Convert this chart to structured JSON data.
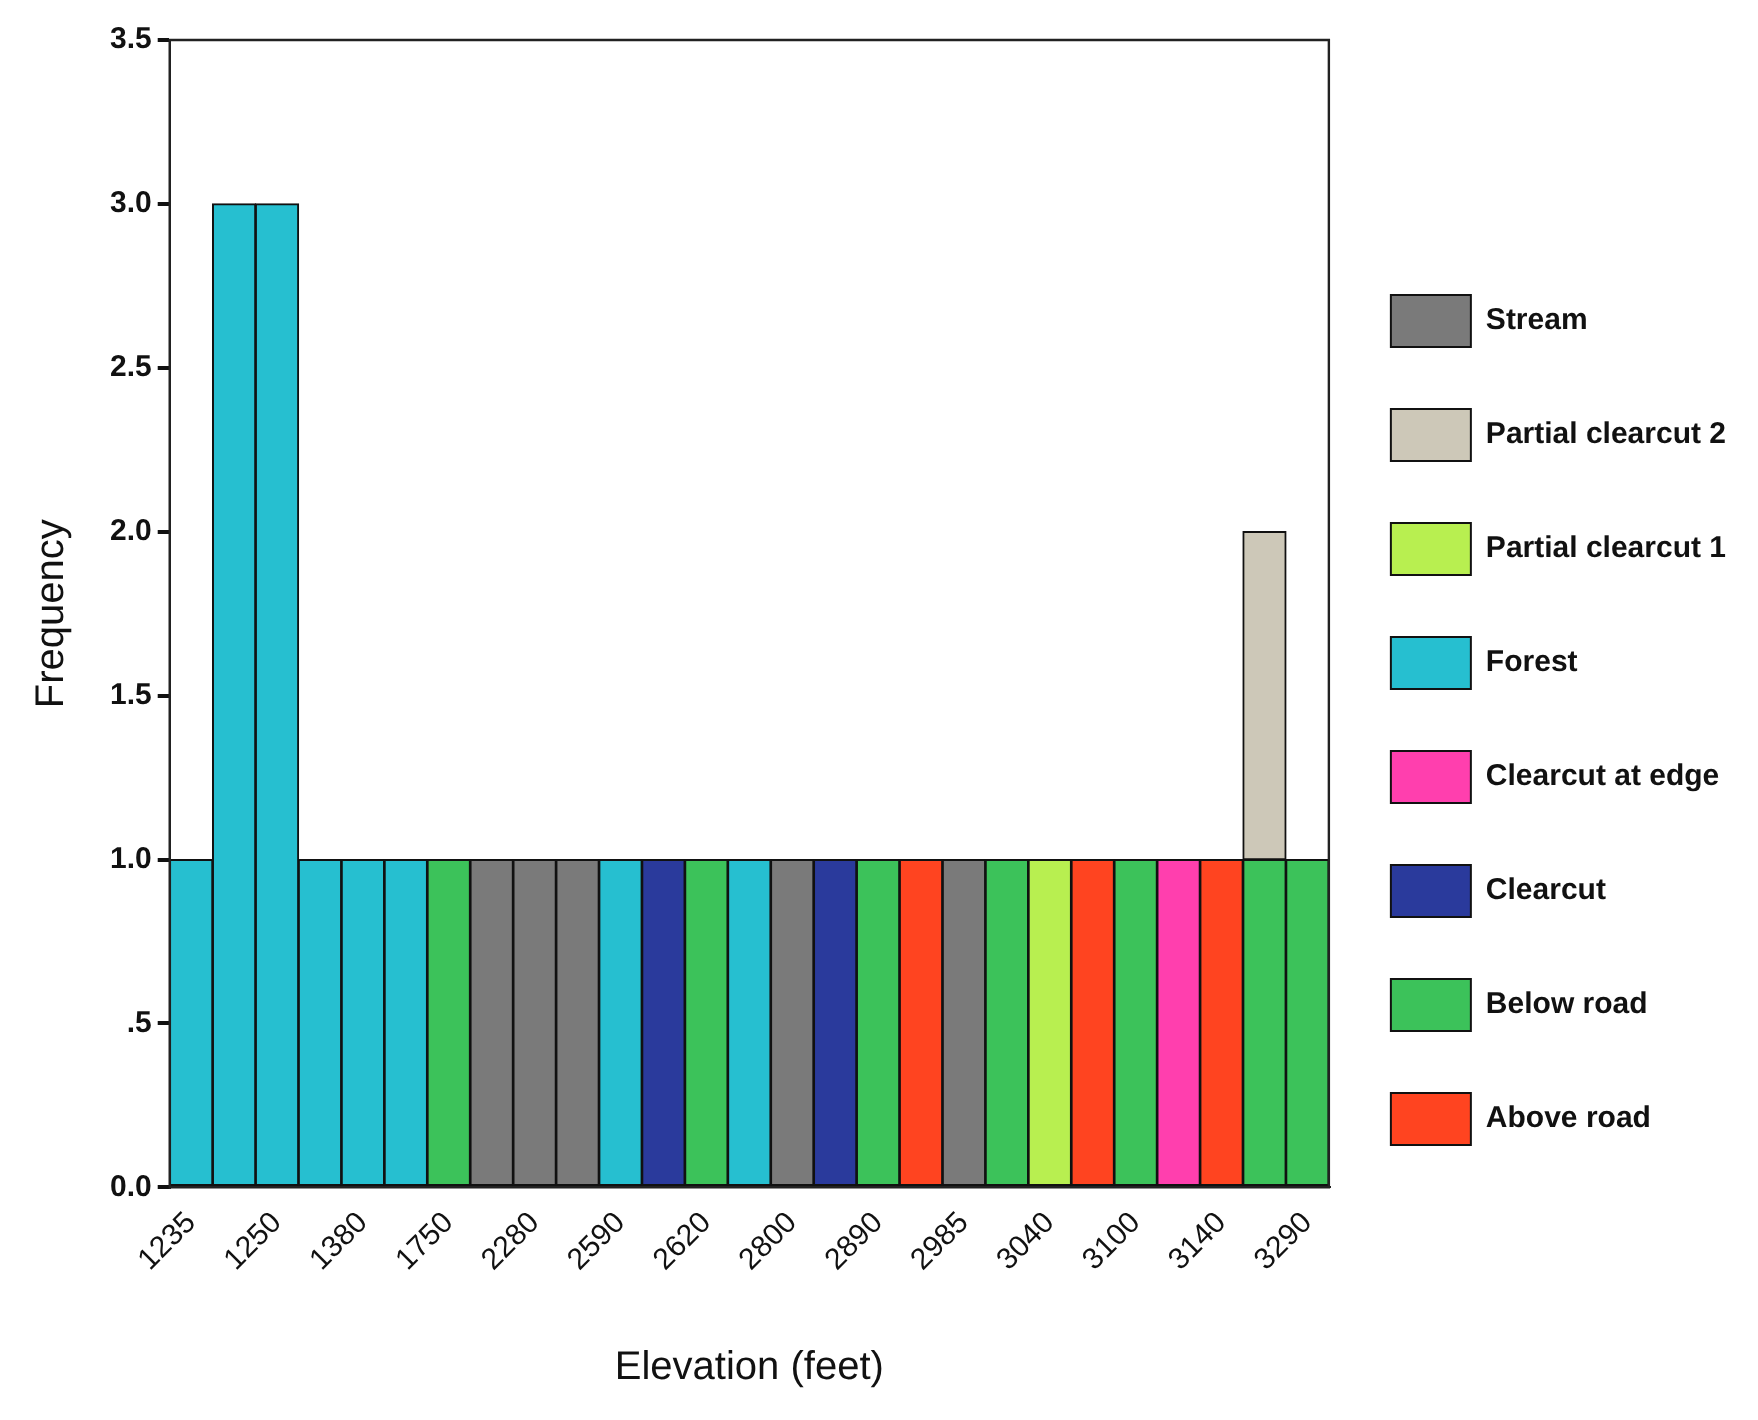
{
  "chart_data": {
    "type": "bar",
    "stacked": true,
    "xlabel": "Elevation (feet)",
    "ylabel": "Frequency",
    "categories": [
      "1235",
      null,
      "1250",
      null,
      "1380",
      null,
      "1750",
      null,
      "2280",
      null,
      "2590",
      null,
      "2620",
      null,
      "2800",
      null,
      "2890",
      null,
      "2985",
      null,
      "3040",
      null,
      "3100",
      null,
      "3140",
      null,
      "3290"
    ],
    "series": [
      {
        "name": "Above road",
        "color": "#ff4420",
        "values": [
          null,
          null,
          null,
          null,
          null,
          null,
          null,
          null,
          null,
          null,
          null,
          null,
          null,
          null,
          null,
          null,
          null,
          1,
          null,
          null,
          null,
          1,
          null,
          null,
          1,
          null,
          null
        ]
      },
      {
        "name": "Below road",
        "color": "#3cc25a",
        "values": [
          null,
          null,
          null,
          null,
          null,
          null,
          1,
          null,
          null,
          null,
          null,
          null,
          1,
          null,
          null,
          null,
          1,
          null,
          null,
          1,
          null,
          null,
          1,
          null,
          null,
          1,
          1
        ]
      },
      {
        "name": "Clearcut",
        "color": "#2a3a9c",
        "values": [
          null,
          null,
          null,
          null,
          null,
          null,
          null,
          null,
          null,
          null,
          null,
          1,
          null,
          null,
          null,
          1,
          null,
          null,
          null,
          null,
          null,
          null,
          null,
          null,
          null,
          null,
          null
        ]
      },
      {
        "name": "Clearcut at edge",
        "color": "#ff3fae",
        "values": [
          null,
          null,
          null,
          null,
          null,
          null,
          null,
          null,
          null,
          null,
          null,
          null,
          null,
          null,
          null,
          null,
          null,
          null,
          null,
          null,
          null,
          null,
          null,
          1,
          null,
          null,
          null
        ]
      },
      {
        "name": "Forest",
        "color": "#26bfd0",
        "values": [
          1,
          3,
          3,
          1,
          1,
          1,
          null,
          null,
          null,
          null,
          1,
          null,
          null,
          1,
          null,
          null,
          null,
          null,
          null,
          null,
          null,
          null,
          null,
          null,
          null,
          null,
          null
        ]
      },
      {
        "name": "Partial clearcut 1",
        "color": "#b8ef50",
        "values": [
          null,
          null,
          null,
          null,
          null,
          null,
          null,
          null,
          null,
          null,
          null,
          null,
          null,
          null,
          null,
          null,
          null,
          null,
          null,
          null,
          1,
          null,
          null,
          null,
          null,
          null,
          null
        ]
      },
      {
        "name": "Partial clearcut 2",
        "color": "#cdc8b8",
        "values": [
          null,
          null,
          null,
          null,
          null,
          null,
          null,
          null,
          null,
          null,
          null,
          null,
          null,
          null,
          null,
          null,
          null,
          null,
          null,
          null,
          null,
          null,
          null,
          null,
          null,
          1,
          null
        ]
      },
      {
        "name": "Stream",
        "color": "#7a7a7a",
        "values": [
          null,
          null,
          null,
          null,
          null,
          null,
          null,
          1,
          1,
          1,
          null,
          null,
          null,
          null,
          1,
          null,
          null,
          null,
          1,
          null,
          null,
          null,
          null,
          null,
          null,
          null,
          null
        ]
      }
    ],
    "ylim": [
      0,
      3.5
    ],
    "yticks": [
      {
        "value": 0,
        "label": "0.0"
      },
      {
        "value": 0.5,
        "label": ".5"
      },
      {
        "value": 1,
        "label": "1.0"
      },
      {
        "value": 1.5,
        "label": "1.5"
      },
      {
        "value": 2,
        "label": "2.0"
      },
      {
        "value": 2.5,
        "label": "2.5"
      },
      {
        "value": 3,
        "label": "3.0"
      },
      {
        "value": 3.5,
        "label": "3.5"
      }
    ],
    "grid": false,
    "legend": "right"
  }
}
